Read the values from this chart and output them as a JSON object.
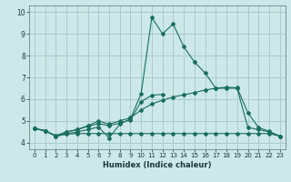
{
  "title": "",
  "xlabel": "Humidex (Indice chaleur)",
  "xlim": [
    -0.5,
    23.5
  ],
  "ylim": [
    3.7,
    10.3
  ],
  "xticks": [
    0,
    1,
    2,
    3,
    4,
    5,
    6,
    7,
    8,
    9,
    10,
    11,
    12,
    13,
    14,
    15,
    16,
    17,
    18,
    19,
    20,
    21,
    22,
    23
  ],
  "yticks": [
    4,
    5,
    6,
    7,
    8,
    9,
    10
  ],
  "bg_color": "#cce8e8",
  "grid_color": "#aacccc",
  "line_color": "#1a6e5e",
  "line1_x": [
    0,
    1,
    2,
    3,
    4,
    5,
    6,
    7,
    8,
    9,
    10,
    11,
    12,
    13,
    14,
    15,
    16,
    17,
    18,
    19,
    20,
    21,
    22,
    23
  ],
  "line1_y": [
    4.65,
    4.55,
    4.3,
    4.4,
    4.42,
    4.42,
    4.42,
    4.42,
    4.42,
    4.42,
    4.42,
    4.42,
    4.42,
    4.42,
    4.42,
    4.42,
    4.42,
    4.42,
    4.42,
    4.42,
    4.42,
    4.42,
    4.42,
    4.3
  ],
  "line2_x": [
    0,
    1,
    2,
    3,
    4,
    5,
    6,
    7,
    8,
    9,
    10,
    11,
    12,
    13,
    14,
    15,
    16,
    17,
    18,
    19,
    20,
    21,
    22,
    23
  ],
  "line2_y": [
    4.65,
    4.55,
    4.3,
    4.4,
    4.5,
    4.6,
    4.72,
    4.22,
    4.85,
    5.1,
    6.25,
    9.75,
    9.0,
    9.45,
    8.4,
    7.7,
    7.2,
    6.5,
    6.5,
    6.5,
    4.7,
    4.6,
    4.5,
    4.3
  ],
  "line3_x": [
    0,
    1,
    2,
    3,
    4,
    5,
    6,
    7,
    8,
    9,
    10,
    11,
    12,
    13,
    14,
    15,
    16,
    17,
    18,
    19,
    20,
    21,
    22,
    23
  ],
  "line3_y": [
    4.65,
    4.55,
    4.32,
    4.48,
    4.6,
    4.78,
    5.0,
    4.85,
    5.0,
    5.15,
    5.5,
    5.78,
    5.95,
    6.1,
    6.2,
    6.3,
    6.42,
    6.5,
    6.55,
    6.52,
    5.38,
    4.7,
    4.52,
    4.3
  ],
  "line4_x": [
    0,
    1,
    2,
    3,
    4,
    5,
    6,
    7,
    8,
    9,
    10,
    11,
    12
  ],
  "line4_y": [
    4.65,
    4.55,
    4.32,
    4.5,
    4.6,
    4.75,
    4.88,
    4.78,
    4.9,
    5.05,
    5.88,
    6.18,
    6.22
  ]
}
